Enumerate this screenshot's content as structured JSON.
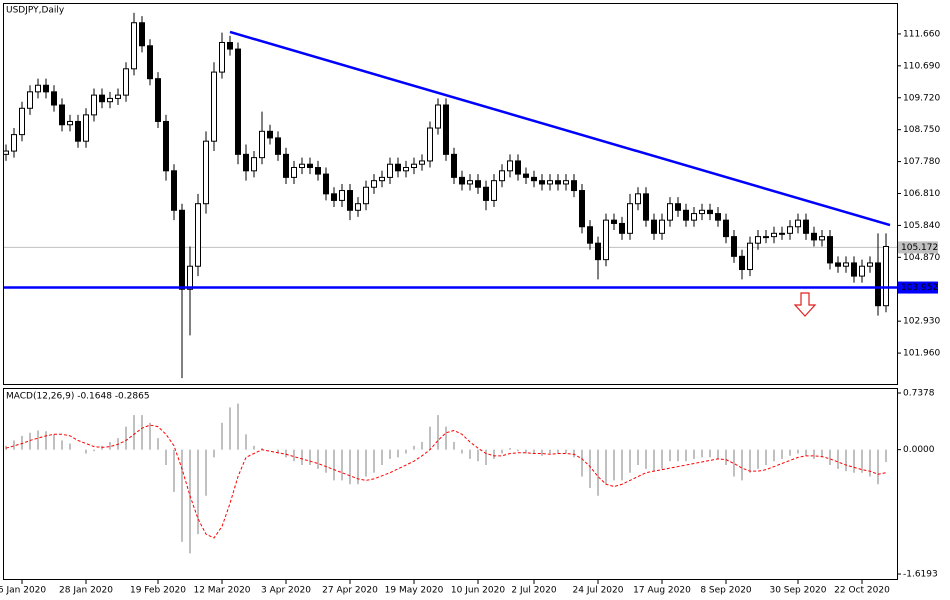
{
  "chart_data": [
    {
      "type": "candlestick",
      "title": "USDJPY,Daily",
      "categories": [
        null,
        null,
        "6 Jan 2020",
        null,
        null,
        null,
        null,
        null,
        null,
        null,
        "28 Jan 2020",
        null,
        null,
        null,
        null,
        null,
        null,
        null,
        null,
        "19 Feb 2020",
        null,
        null,
        null,
        null,
        null,
        null,
        null,
        "12 Mar 2020",
        null,
        null,
        null,
        null,
        null,
        null,
        null,
        "3 Apr 2020",
        null,
        null,
        null,
        null,
        null,
        null,
        null,
        "27 Apr 2020",
        null,
        null,
        null,
        null,
        null,
        null,
        null,
        "19 May 2020",
        null,
        null,
        null,
        null,
        null,
        null,
        null,
        "10 Jun 2020",
        null,
        null,
        null,
        null,
        null,
        null,
        "2 Jul 2020",
        null,
        null,
        null,
        null,
        null,
        null,
        null,
        "24 Jul 2020",
        null,
        null,
        null,
        null,
        null,
        null,
        null,
        "17 Aug 2020",
        null,
        null,
        null,
        null,
        null,
        null,
        null,
        "8 Sep 2020",
        null,
        null,
        null,
        null,
        null,
        null,
        null,
        null,
        "30 Sep 2020",
        null,
        null,
        null,
        null,
        null,
        null,
        null,
        "22 Oct 2020",
        null,
        null,
        null
      ],
      "open": [
        108.0,
        108.1,
        108.6,
        109.4,
        109.9,
        110.1,
        109.9,
        109.5,
        108.9,
        109.0,
        108.4,
        109.2,
        109.8,
        109.6,
        109.7,
        109.8,
        110.6,
        112.0,
        111.3,
        110.3,
        109.0,
        107.5,
        106.3,
        103.9,
        104.6,
        106.5,
        108.4,
        110.5,
        111.4,
        111.2,
        108.0,
        107.5,
        107.9,
        108.7,
        108.5,
        108.0,
        107.3,
        107.6,
        107.7,
        107.6,
        107.4,
        106.8,
        106.6,
        106.9,
        106.3,
        106.5,
        107.0,
        107.2,
        107.3,
        107.7,
        107.5,
        107.6,
        107.7,
        107.8,
        108.8,
        109.5,
        108.0,
        107.3,
        107.1,
        107.2,
        107.0,
        106.6,
        107.2,
        107.5,
        107.8,
        107.4,
        107.3,
        107.2,
        107.1,
        107.2,
        107.1,
        107.2,
        106.9,
        105.8,
        105.3,
        104.8,
        106.0,
        105.9,
        105.6,
        106.5,
        106.8,
        106.0,
        105.6,
        106.0,
        106.5,
        106.3,
        106.0,
        106.2,
        106.3,
        106.2,
        106.0,
        105.5,
        104.9,
        104.5,
        105.3,
        105.5,
        105.5,
        105.6,
        105.6,
        105.8,
        106.0,
        105.6,
        105.4,
        105.5,
        104.7,
        104.6,
        104.7,
        104.3,
        104.6,
        104.7,
        103.4
      ],
      "high": [
        108.3,
        108.8,
        109.6,
        110.1,
        110.3,
        110.3,
        110.1,
        109.7,
        109.2,
        109.2,
        109.4,
        110.0,
        110.0,
        109.9,
        110.0,
        110.8,
        112.3,
        112.2,
        111.5,
        110.5,
        109.2,
        107.7,
        106.5,
        105.2,
        106.8,
        108.7,
        110.8,
        111.7,
        111.6,
        111.4,
        108.3,
        108.1,
        109.3,
        108.9,
        108.7,
        108.2,
        107.8,
        107.9,
        107.9,
        107.8,
        107.6,
        107.0,
        107.1,
        107.1,
        106.7,
        107.2,
        107.4,
        107.5,
        107.9,
        107.9,
        107.8,
        107.9,
        108.0,
        109.0,
        109.7,
        109.7,
        108.2,
        107.5,
        107.4,
        107.4,
        107.2,
        107.4,
        107.7,
        108.0,
        108.0,
        107.6,
        107.5,
        107.4,
        107.4,
        107.4,
        107.4,
        107.4,
        107.1,
        106.0,
        105.5,
        106.2,
        106.2,
        106.1,
        106.8,
        107.0,
        107.0,
        106.2,
        106.2,
        106.7,
        106.7,
        106.5,
        106.4,
        106.5,
        106.5,
        106.4,
        106.2,
        105.7,
        105.1,
        105.5,
        105.7,
        105.7,
        105.8,
        105.8,
        106.0,
        106.2,
        106.2,
        105.8,
        105.7,
        105.7,
        104.9,
        104.9,
        104.9,
        104.8,
        104.9,
        105.6,
        105.6
      ],
      "low": [
        107.8,
        107.9,
        108.4,
        109.2,
        109.7,
        109.7,
        109.3,
        108.7,
        108.7,
        108.2,
        108.2,
        109.0,
        109.4,
        109.4,
        109.5,
        109.6,
        110.4,
        111.1,
        110.1,
        108.8,
        107.2,
        106.0,
        101.2,
        102.5,
        104.3,
        106.2,
        108.1,
        110.3,
        111.0,
        107.7,
        107.2,
        107.3,
        107.7,
        108.3,
        107.8,
        107.1,
        107.1,
        107.4,
        107.4,
        107.2,
        106.6,
        106.4,
        106.4,
        106.0,
        106.1,
        106.3,
        106.8,
        107.0,
        107.1,
        107.3,
        107.3,
        107.4,
        107.5,
        107.6,
        108.6,
        107.8,
        107.1,
        106.9,
        106.9,
        106.8,
        106.3,
        106.4,
        107.0,
        107.3,
        107.2,
        107.1,
        107.0,
        106.9,
        106.9,
        106.9,
        106.9,
        106.7,
        105.6,
        105.1,
        104.2,
        104.6,
        105.7,
        105.4,
        105.4,
        106.3,
        105.8,
        105.4,
        105.4,
        105.8,
        106.1,
        105.8,
        105.8,
        106.0,
        106.0,
        105.8,
        105.3,
        104.7,
        104.2,
        104.3,
        105.1,
        105.3,
        105.3,
        105.4,
        105.4,
        105.6,
        105.4,
        105.2,
        105.2,
        104.5,
        104.4,
        104.4,
        104.1,
        104.1,
        104.4,
        103.1,
        103.2
      ],
      "close": [
        108.1,
        108.6,
        109.4,
        109.9,
        110.1,
        109.9,
        109.5,
        108.9,
        109.0,
        108.4,
        109.2,
        109.8,
        109.6,
        109.7,
        109.8,
        110.6,
        112.0,
        111.3,
        110.3,
        109.0,
        107.5,
        106.3,
        103.9,
        104.6,
        106.5,
        108.4,
        110.5,
        111.4,
        111.2,
        108.0,
        107.5,
        107.9,
        108.7,
        108.5,
        108.0,
        107.3,
        107.6,
        107.7,
        107.6,
        107.4,
        106.8,
        106.6,
        106.9,
        106.3,
        106.5,
        107.0,
        107.2,
        107.3,
        107.7,
        107.5,
        107.6,
        107.7,
        107.8,
        108.8,
        109.5,
        108.0,
        107.3,
        107.1,
        107.2,
        107.0,
        106.6,
        107.2,
        107.5,
        107.8,
        107.4,
        107.3,
        107.2,
        107.1,
        107.2,
        107.1,
        107.2,
        106.9,
        105.8,
        105.3,
        104.8,
        106.0,
        105.9,
        105.6,
        106.5,
        106.8,
        106.0,
        105.6,
        106.0,
        106.5,
        106.3,
        106.0,
        106.2,
        106.3,
        106.2,
        106.0,
        105.5,
        104.9,
        104.5,
        105.3,
        105.5,
        105.5,
        105.6,
        105.6,
        105.8,
        106.0,
        105.6,
        105.4,
        105.5,
        104.7,
        104.6,
        104.7,
        104.3,
        104.6,
        104.7,
        103.4,
        105.2
      ],
      "ylim": [
        100.99,
        112.6
      ],
      "yticks": [
        {
          "value": 111.66,
          "label": "111.660"
        },
        {
          "value": 110.69,
          "label": "110.690"
        },
        {
          "value": 109.72,
          "label": "109.720"
        },
        {
          "value": 108.75,
          "label": "108.750"
        },
        {
          "value": 107.78,
          "label": "107.780"
        },
        {
          "value": 106.81,
          "label": "106.810"
        },
        {
          "value": 105.84,
          "label": "105.840"
        },
        {
          "value": 104.87,
          "label": "104.870"
        },
        {
          "value": 102.93,
          "label": "102.930"
        },
        {
          "value": 101.96,
          "label": "101.960"
        }
      ],
      "current_price": 105.172,
      "level": {
        "value": 103.952,
        "color": "#0000ff"
      },
      "trendline": {
        "x": [
          28,
          110.5
        ],
        "y": [
          111.72,
          105.85
        ],
        "color": "#0000ff"
      }
    },
    {
      "type": "macd",
      "title": "MACD(12,26,9) -0.1648 -0.2865",
      "series": [
        {
          "name": "MACD",
          "color": "#c0c0c0",
          "values": [
            0.05,
            0.12,
            0.18,
            0.22,
            0.25,
            0.24,
            0.2,
            0.12,
            0.08,
            0.0,
            -0.05,
            -0.02,
            0.05,
            0.1,
            0.15,
            0.3,
            0.45,
            0.45,
            0.35,
            0.15,
            -0.2,
            -0.55,
            -1.2,
            -1.35,
            -1.1,
            -0.6,
            -0.1,
            0.35,
            0.55,
            0.6,
            0.2,
            0.05,
            0.02,
            0.0,
            -0.05,
            -0.1,
            -0.15,
            -0.2,
            -0.2,
            -0.25,
            -0.3,
            -0.4,
            -0.4,
            -0.45,
            -0.45,
            -0.35,
            -0.3,
            -0.2,
            -0.12,
            -0.1,
            -0.05,
            0.05,
            0.1,
            0.3,
            0.45,
            0.3,
            0.1,
            -0.05,
            -0.12,
            -0.15,
            -0.2,
            -0.12,
            -0.05,
            0.02,
            -0.02,
            -0.05,
            -0.05,
            -0.08,
            -0.05,
            -0.05,
            -0.05,
            -0.1,
            -0.35,
            -0.5,
            -0.6,
            -0.45,
            -0.4,
            -0.4,
            -0.3,
            -0.2,
            -0.25,
            -0.28,
            -0.25,
            -0.15,
            -0.15,
            -0.15,
            -0.12,
            -0.1,
            -0.1,
            -0.12,
            -0.2,
            -0.35,
            -0.4,
            -0.3,
            -0.25,
            -0.2,
            -0.15,
            -0.12,
            -0.08,
            -0.05,
            -0.08,
            -0.12,
            -0.1,
            -0.2,
            -0.25,
            -0.28,
            -0.3,
            -0.3,
            -0.35,
            -0.45,
            -0.16
          ]
        },
        {
          "name": "Signal",
          "color": "#ff0000",
          "values": [
            0.02,
            0.05,
            0.08,
            0.12,
            0.15,
            0.18,
            0.2,
            0.2,
            0.18,
            0.12,
            0.08,
            0.04,
            0.03,
            0.04,
            0.07,
            0.12,
            0.2,
            0.28,
            0.32,
            0.3,
            0.2,
            0.05,
            -0.25,
            -0.6,
            -0.9,
            -1.1,
            -1.15,
            -1.0,
            -0.7,
            -0.35,
            -0.1,
            -0.05,
            0.0,
            -0.02,
            -0.04,
            -0.06,
            -0.09,
            -0.12,
            -0.15,
            -0.18,
            -0.22,
            -0.26,
            -0.3,
            -0.34,
            -0.38,
            -0.4,
            -0.38,
            -0.34,
            -0.3,
            -0.25,
            -0.2,
            -0.15,
            -0.08,
            0.0,
            0.12,
            0.22,
            0.25,
            0.2,
            0.1,
            0.02,
            -0.05,
            -0.08,
            -0.08,
            -0.05,
            -0.04,
            -0.04,
            -0.05,
            -0.05,
            -0.06,
            -0.05,
            -0.05,
            -0.06,
            -0.12,
            -0.22,
            -0.35,
            -0.45,
            -0.48,
            -0.45,
            -0.4,
            -0.35,
            -0.3,
            -0.28,
            -0.26,
            -0.24,
            -0.22,
            -0.2,
            -0.18,
            -0.16,
            -0.14,
            -0.12,
            -0.13,
            -0.18,
            -0.24,
            -0.28,
            -0.28,
            -0.26,
            -0.22,
            -0.18,
            -0.14,
            -0.1,
            -0.08,
            -0.08,
            -0.09,
            -0.12,
            -0.16,
            -0.2,
            -0.23,
            -0.26,
            -0.28,
            -0.32,
            -0.3
          ]
        }
      ],
      "ylim": [
        -1.697,
        0.803
      ],
      "yticks": [
        0.7378,
        {
          "value": 0,
          "label": "0.0000"
        },
        -1.6193
      ]
    }
  ]
}
